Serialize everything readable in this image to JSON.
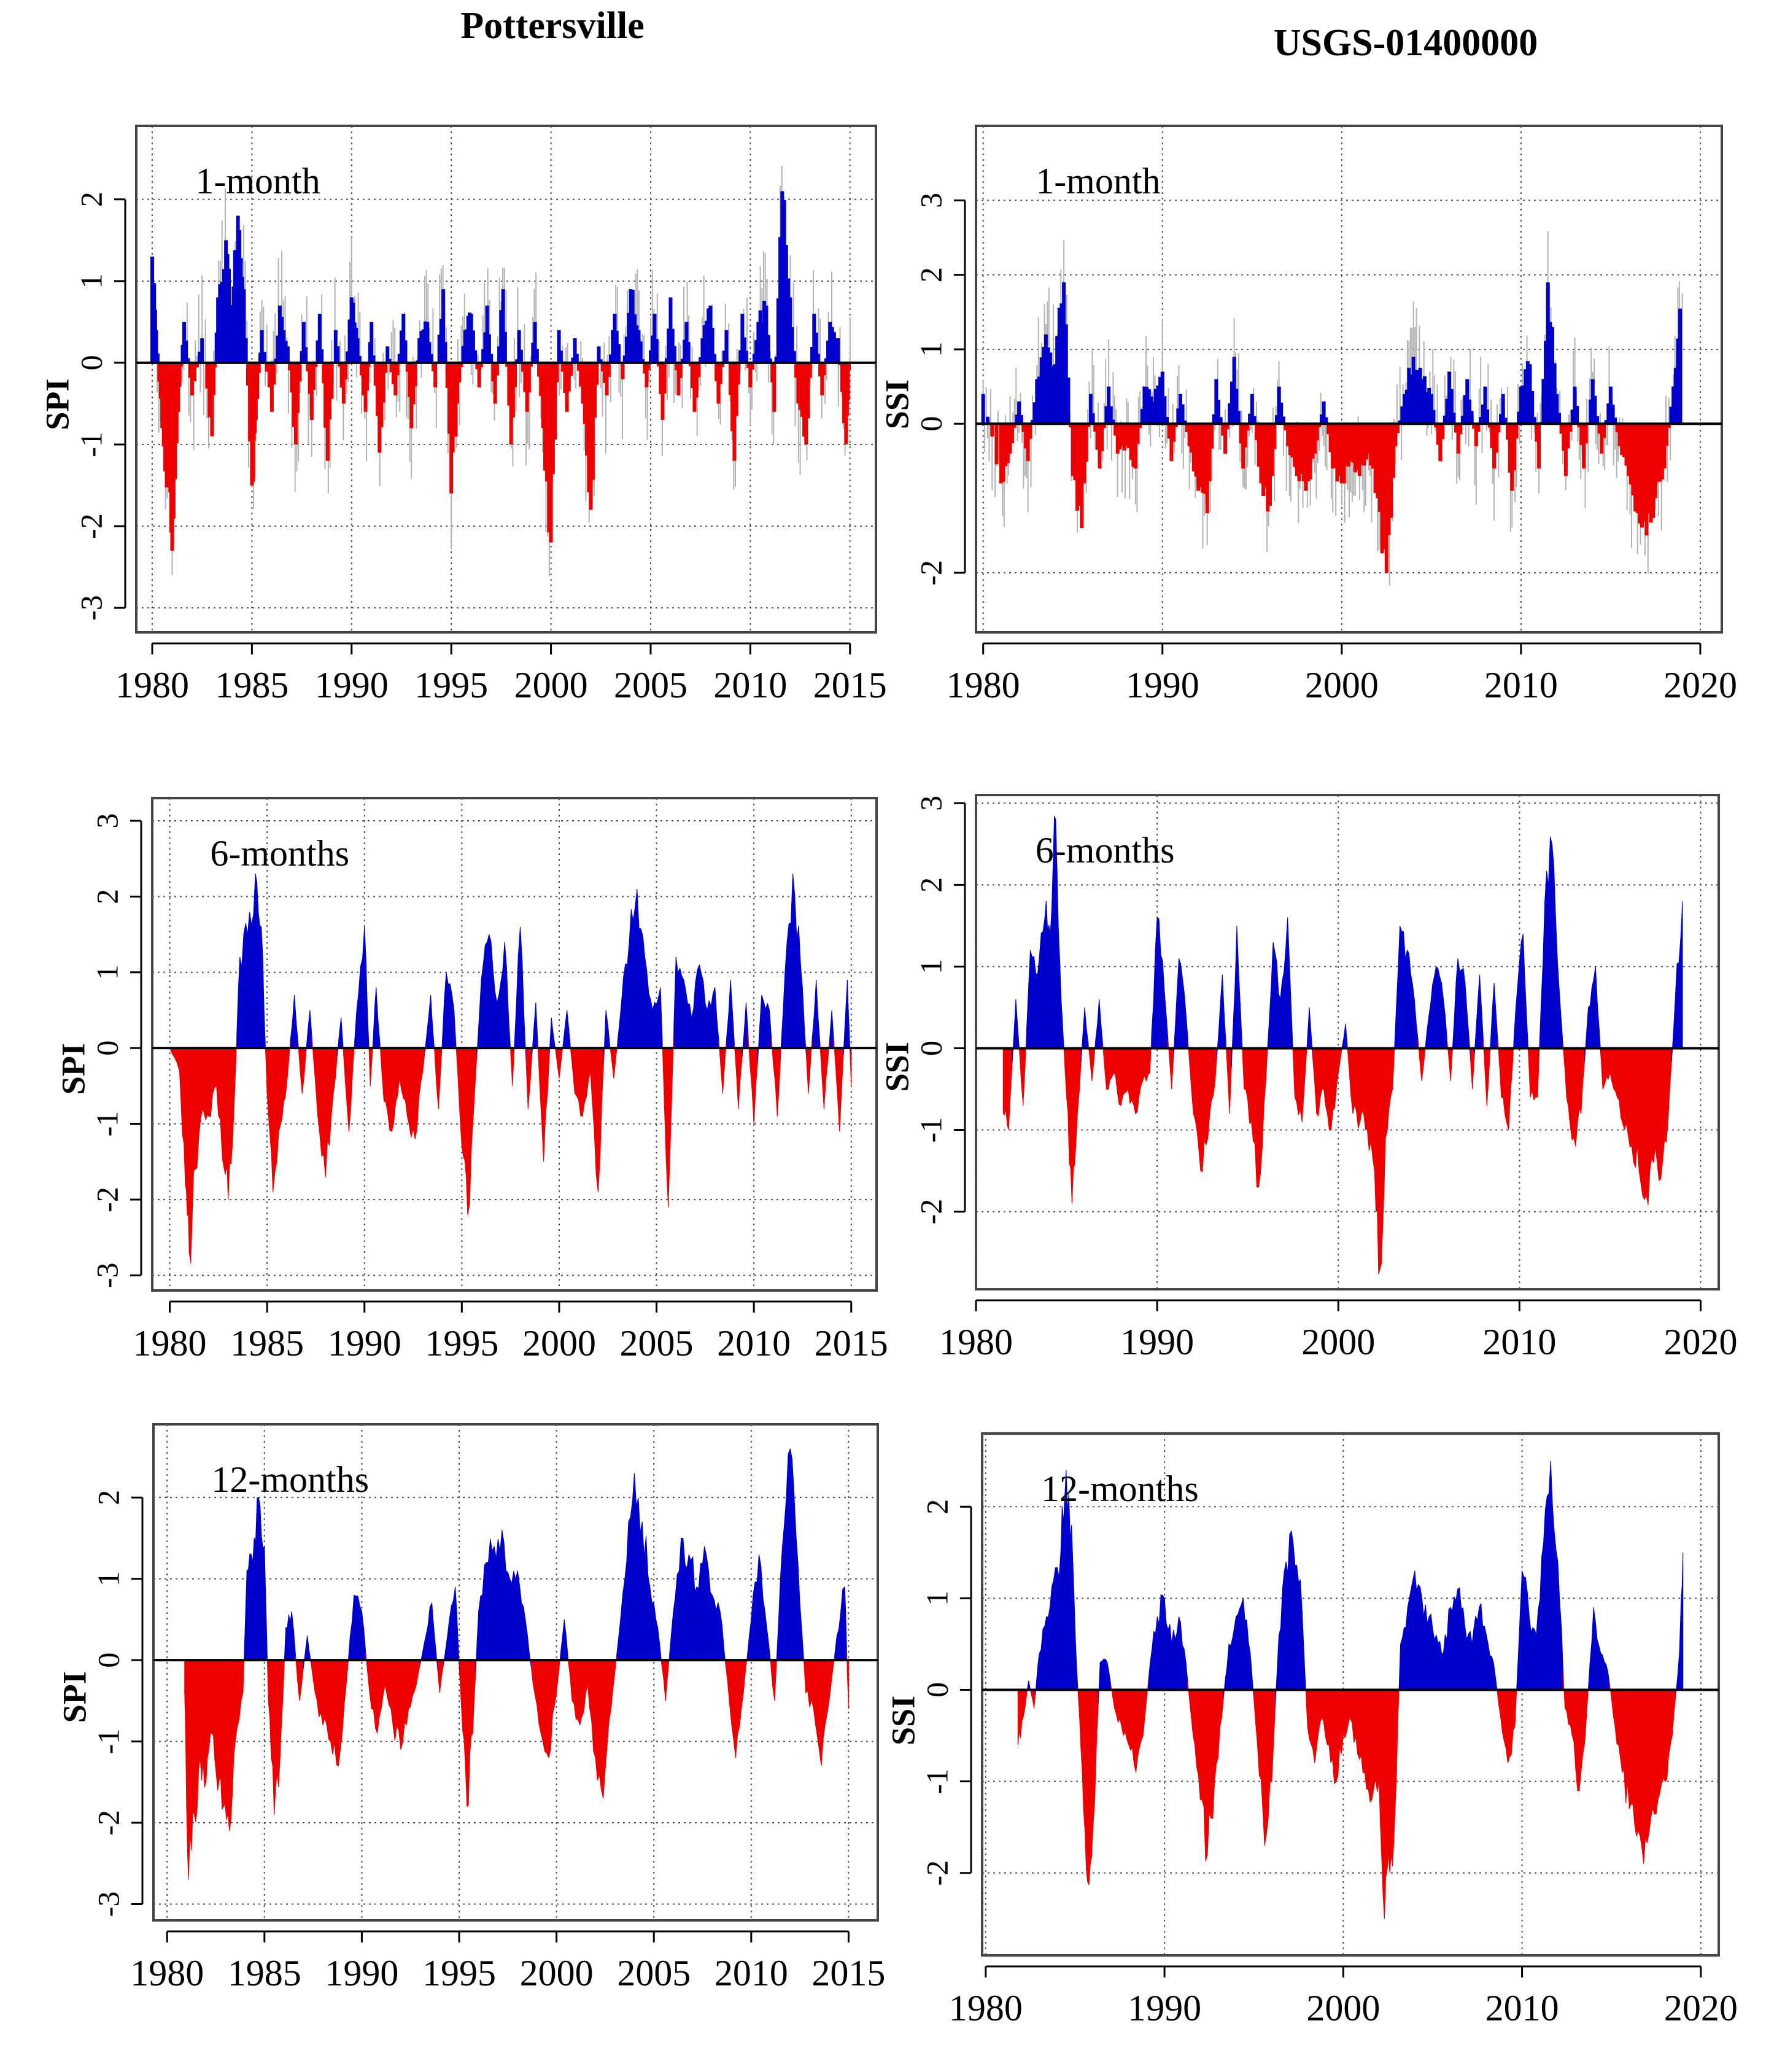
{
  "figure": {
    "left_title": "Pottersville",
    "right_title": "USGS-01400000"
  },
  "colors": {
    "positive": "#0000cc",
    "negative": "#ee0000",
    "noise": "#b3b3b3",
    "grid": "#555555",
    "frame": "#444444"
  },
  "chart_data": [
    {
      "type": "area",
      "panel": "spi-1",
      "title": "",
      "label": "1-month",
      "ylabel": "SPI",
      "xlabel": "",
      "xlim": [
        1979.2,
        2016.3
      ],
      "ylim": [
        -3.3,
        2.9
      ],
      "xticks": [
        1980,
        1985,
        1990,
        1995,
        2000,
        2005,
        2010,
        2015
      ],
      "yticks": [
        -3,
        -2,
        -1,
        0,
        1,
        2
      ],
      "grid": true,
      "monthly": true,
      "x": [
        1980.0,
        1980.2,
        1980.5,
        1980.8,
        1981.0,
        1981.3,
        1981.6,
        1982.0,
        1982.5,
        1983.0,
        1983.3,
        1983.7,
        1984.0,
        1984.3,
        1984.6,
        1985.0,
        1985.2,
        1985.5,
        1986.0,
        1986.4,
        1986.8,
        1987.2,
        1987.6,
        1988.0,
        1988.4,
        1988.8,
        1989.2,
        1989.6,
        1990.0,
        1990.3,
        1990.7,
        1991.0,
        1991.4,
        1991.8,
        1992.2,
        1992.6,
        1993.0,
        1993.4,
        1993.8,
        1994.2,
        1994.6,
        1995.0,
        1995.3,
        1995.7,
        1996.0,
        1996.4,
        1996.8,
        1997.2,
        1997.6,
        1998.0,
        1998.4,
        1998.8,
        1999.2,
        1999.6,
        2000.0,
        2000.4,
        2000.8,
        2001.2,
        2001.6,
        2002.0,
        2002.4,
        2002.8,
        2003.2,
        2003.6,
        2004.0,
        2004.4,
        2004.8,
        2005.2,
        2005.6,
        2006.0,
        2006.4,
        2006.8,
        2007.2,
        2007.6,
        2008.0,
        2008.4,
        2008.8,
        2009.2,
        2009.6,
        2010.0,
        2010.4,
        2010.8,
        2011.2,
        2011.6,
        2012.0,
        2012.4,
        2012.8,
        2013.2,
        2013.6,
        2014.0,
        2014.4,
        2014.8,
        2015.0
      ],
      "values": [
        1.3,
        0.4,
        -0.8,
        -1.5,
        -2.3,
        -0.6,
        0.5,
        -0.4,
        0.3,
        -0.9,
        0.8,
        1.5,
        0.6,
        1.8,
        0.9,
        -1.5,
        -0.7,
        0.4,
        -0.6,
        0.7,
        0.2,
        -1.0,
        0.5,
        -0.7,
        0.6,
        -1.2,
        0.4,
        -0.5,
        0.8,
        0.3,
        -0.6,
        0.5,
        -1.1,
        0.2,
        -0.4,
        0.6,
        -0.8,
        0.3,
        0.5,
        -0.3,
        0.9,
        -1.6,
        -0.5,
        0.4,
        0.6,
        -0.3,
        0.7,
        -0.5,
        0.9,
        -1.0,
        0.4,
        -0.6,
        0.5,
        -0.8,
        -2.2,
        0.4,
        -0.6,
        0.3,
        -0.5,
        -1.8,
        0.2,
        -0.4,
        0.6,
        -0.2,
        0.9,
        0.4,
        -0.3,
        0.6,
        -0.7,
        0.8,
        -0.4,
        0.5,
        -0.6,
        0.3,
        0.7,
        -0.5,
        0.4,
        -1.2,
        0.6,
        -0.3,
        0.5,
        0.7,
        -0.6,
        2.1,
        0.8,
        -0.5,
        -1.0,
        0.6,
        -0.4,
        0.5,
        0.3,
        -1.0,
        0.2
      ]
    },
    {
      "type": "area",
      "panel": "ssi-1",
      "title": "",
      "label": "1-month",
      "ylabel": "SSI",
      "xlabel": "",
      "xlim": [
        1979.6,
        2021.2
      ],
      "ylim": [
        -2.8,
        4.0
      ],
      "xticks": [
        1980,
        1990,
        2000,
        2010,
        2020
      ],
      "yticks": [
        -2,
        0,
        1,
        2,
        3
      ],
      "grid": true,
      "monthly": true,
      "x": [
        1980.0,
        1981.0,
        1981.5,
        1982.0,
        1982.5,
        1983.0,
        1983.5,
        1984.0,
        1984.5,
        1985.0,
        1985.5,
        1986.0,
        1986.5,
        1987.0,
        1987.5,
        1988.0,
        1988.5,
        1989.0,
        1989.5,
        1990.0,
        1990.5,
        1991.0,
        1991.5,
        1992.0,
        1992.5,
        1993.0,
        1993.5,
        1994.0,
        1994.5,
        1995.0,
        1995.5,
        1996.0,
        1996.5,
        1997.0,
        1997.5,
        1998.0,
        1998.5,
        1999.0,
        1999.5,
        2000.0,
        2000.5,
        2001.0,
        2001.5,
        2002.0,
        2002.5,
        2003.0,
        2003.5,
        2004.0,
        2004.5,
        2005.0,
        2005.5,
        2006.0,
        2006.5,
        2007.0,
        2007.5,
        2008.0,
        2008.5,
        2009.0,
        2009.5,
        2010.0,
        2010.5,
        2011.0,
        2011.5,
        2012.0,
        2012.5,
        2013.0,
        2013.5,
        2014.0,
        2014.5,
        2015.0,
        2015.5,
        2016.0,
        2016.5,
        2017.0,
        2017.5,
        2018.0,
        2018.5,
        2019.0
      ],
      "values": [
        0.4,
        -0.8,
        -0.4,
        0.3,
        -0.5,
        0.6,
        1.2,
        0.8,
        1.9,
        -0.7,
        -1.4,
        0.4,
        -0.6,
        0.5,
        -0.4,
        -0.3,
        -0.6,
        0.5,
        0.3,
        0.7,
        -0.5,
        0.4,
        -0.3,
        -0.9,
        -1.2,
        0.6,
        -0.4,
        0.9,
        -0.6,
        0.4,
        -0.8,
        -1.1,
        0.5,
        -0.3,
        -0.7,
        -0.9,
        -0.4,
        0.3,
        -0.6,
        -0.8,
        -0.5,
        -0.7,
        -0.4,
        -1.0,
        -2.0,
        -0.3,
        0.4,
        0.9,
        0.6,
        0.4,
        -0.5,
        0.7,
        -0.4,
        0.6,
        -0.3,
        0.5,
        -0.6,
        0.4,
        -0.9,
        0.5,
        0.8,
        -0.6,
        1.9,
        0.4,
        -0.7,
        0.5,
        -0.6,
        0.6,
        -0.4,
        0.5,
        -0.3,
        -0.7,
        -1.2,
        -1.5,
        -1.0,
        -0.6,
        0.5,
        1.8
      ]
    },
    {
      "type": "area",
      "panel": "spi-6",
      "title": "",
      "label": "6-months",
      "ylabel": "SPI",
      "xlabel": "",
      "xlim": [
        1979.1,
        2016.3
      ],
      "ylim": [
        -3.2,
        3.3
      ],
      "xticks": [
        1980,
        1985,
        1990,
        1995,
        2000,
        2005,
        2010,
        2015
      ],
      "yticks": [
        -3,
        -2,
        -1,
        0,
        1,
        2,
        3
      ],
      "grid": true,
      "monthly": false,
      "x": [
        1980.0,
        1980.5,
        1980.8,
        1981.0,
        1981.3,
        1981.7,
        1982.0,
        1982.4,
        1982.8,
        1983.0,
        1983.3,
        1983.6,
        1984.0,
        1984.4,
        1984.7,
        1985.0,
        1985.3,
        1985.7,
        1986.0,
        1986.4,
        1986.8,
        1987.2,
        1987.6,
        1988.0,
        1988.4,
        1988.8,
        1989.2,
        1989.6,
        1990.0,
        1990.3,
        1990.6,
        1991.0,
        1991.4,
        1991.8,
        1992.2,
        1992.6,
        1993.0,
        1993.4,
        1993.8,
        1994.2,
        1994.6,
        1995.0,
        1995.3,
        1995.7,
        1996.0,
        1996.4,
        1996.8,
        1997.2,
        1997.6,
        1998.0,
        1998.4,
        1998.8,
        1999.2,
        1999.6,
        2000.0,
        2000.4,
        2000.8,
        2001.2,
        2001.6,
        2002.0,
        2002.4,
        2002.8,
        2003.2,
        2003.6,
        2004.0,
        2004.4,
        2004.8,
        2005.2,
        2005.6,
        2006.0,
        2006.4,
        2006.8,
        2007.2,
        2007.6,
        2008.0,
        2008.4,
        2008.8,
        2009.2,
        2009.6,
        2010.0,
        2010.4,
        2010.8,
        2011.2,
        2011.6,
        2012.0,
        2012.4,
        2012.8,
        2013.2,
        2013.6,
        2014.0,
        2014.4,
        2014.8,
        2015.0
      ],
      "values": [
        0.0,
        -0.3,
        -1.8,
        -2.7,
        -1.6,
        -0.8,
        -0.9,
        -0.5,
        -1.6,
        -2.0,
        -0.8,
        1.2,
        1.5,
        2.3,
        1.6,
        -0.6,
        -1.9,
        -1.0,
        -0.5,
        0.7,
        -0.6,
        0.5,
        -0.9,
        -1.7,
        -0.6,
        0.4,
        -1.1,
        0.5,
        1.6,
        -0.5,
        0.8,
        -0.7,
        -1.1,
        -0.4,
        -0.9,
        -1.2,
        -0.3,
        0.7,
        -0.8,
        1.0,
        0.5,
        -1.3,
        -2.2,
        -0.4,
        0.9,
        1.5,
        0.6,
        1.4,
        -0.5,
        1.6,
        -0.8,
        0.6,
        -1.5,
        0.4,
        -0.4,
        0.5,
        -0.6,
        -0.9,
        -0.3,
        -1.9,
        0.5,
        -0.4,
        0.6,
        1.4,
        2.1,
        1.2,
        0.5,
        0.8,
        -2.1,
        1.2,
        0.9,
        0.4,
        1.1,
        0.5,
        0.8,
        -0.6,
        0.9,
        -0.8,
        0.6,
        -1.0,
        0.7,
        0.5,
        -0.9,
        1.0,
        2.3,
        1.1,
        -0.6,
        0.9,
        -0.8,
        0.5,
        -1.1,
        0.9,
        -0.5
      ]
    },
    {
      "type": "area",
      "panel": "ssi-6",
      "title": "",
      "label": "6-months",
      "ylabel": "SSI",
      "xlabel": "",
      "xlim": [
        1980.0,
        2021.0
      ],
      "ylim": [
        -2.95,
        3.1
      ],
      "xticks": [
        1980,
        1990,
        2000,
        2010,
        2020
      ],
      "yticks": [
        -2,
        -1,
        0,
        1,
        2,
        3
      ],
      "grid": true,
      "monthly": false,
      "x": [
        1981.5,
        1981.8,
        1982.2,
        1982.6,
        1983.0,
        1983.4,
        1983.8,
        1984.1,
        1984.4,
        1984.7,
        1985.0,
        1985.3,
        1985.6,
        1986.0,
        1986.4,
        1986.8,
        1987.2,
        1987.6,
        1988.0,
        1988.4,
        1988.8,
        1989.2,
        1989.6,
        1990.0,
        1990.4,
        1990.8,
        1991.2,
        1991.6,
        1992.0,
        1992.4,
        1992.8,
        1993.2,
        1993.6,
        1994.0,
        1994.4,
        1994.8,
        1995.2,
        1995.6,
        1996.0,
        1996.4,
        1996.8,
        1997.2,
        1997.6,
        1998.0,
        1998.4,
        1998.8,
        1999.2,
        1999.6,
        2000.0,
        2000.4,
        2000.8,
        2001.2,
        2001.6,
        2002.0,
        2002.3,
        2002.6,
        2003.0,
        2003.4,
        2003.8,
        2004.2,
        2004.6,
        2005.0,
        2005.4,
        2005.8,
        2006.2,
        2006.6,
        2007.0,
        2007.4,
        2007.8,
        2008.2,
        2008.6,
        2009.0,
        2009.4,
        2009.8,
        2010.2,
        2010.6,
        2011.0,
        2011.4,
        2011.8,
        2012.2,
        2012.6,
        2013.0,
        2013.4,
        2013.8,
        2014.2,
        2014.6,
        2015.0,
        2015.4,
        2015.8,
        2016.2,
        2016.6,
        2017.0,
        2017.4,
        2017.8,
        2018.2,
        2018.6,
        2019.0
      ],
      "values": [
        -0.8,
        -1.0,
        0.6,
        -0.7,
        1.2,
        0.9,
        1.6,
        1.4,
        2.8,
        0.6,
        -0.6,
        -1.9,
        -0.8,
        0.5,
        -0.4,
        0.6,
        -0.5,
        -0.3,
        -0.7,
        -0.5,
        -0.8,
        -0.4,
        -0.3,
        1.6,
        0.7,
        -0.5,
        1.1,
        0.4,
        -0.8,
        -1.5,
        -1.1,
        -0.4,
        0.9,
        -0.8,
        1.5,
        -0.5,
        -0.9,
        -1.7,
        -0.4,
        1.3,
        0.6,
        1.6,
        -0.6,
        -0.9,
        0.5,
        -0.8,
        -0.5,
        -1.0,
        -0.3,
        0.3,
        -0.8,
        -0.9,
        -1.0,
        -1.5,
        -2.7,
        -1.1,
        -0.5,
        1.5,
        1.2,
        0.6,
        -0.4,
        0.4,
        1.0,
        0.6,
        -0.4,
        1.1,
        0.8,
        -0.5,
        0.9,
        -0.7,
        0.8,
        -0.6,
        -1.0,
        0.5,
        1.4,
        -0.6,
        -0.6,
        1.8,
        2.5,
        0.7,
        -0.6,
        -1.1,
        -0.8,
        0.5,
        1.0,
        -0.5,
        -0.3,
        -0.6,
        -1.0,
        -1.2,
        -1.5,
        -1.8,
        -1.4,
        -1.6,
        -0.9,
        0.6,
        1.8
      ]
    },
    {
      "type": "area",
      "panel": "spi-12",
      "title": "",
      "label": "12-months",
      "ylabel": "SPI",
      "xlabel": "",
      "xlim": [
        1979.3,
        2016.5
      ],
      "ylim": [
        -3.2,
        2.9
      ],
      "xticks": [
        1980,
        1985,
        1990,
        1995,
        2000,
        2005,
        2010,
        2015
      ],
      "yticks": [
        -3,
        -2,
        -1,
        0,
        1,
        2
      ],
      "grid": true,
      "monthly": false,
      "x": [
        1980.9,
        1981.1,
        1981.4,
        1981.7,
        1982.0,
        1982.3,
        1982.6,
        1982.9,
        1983.2,
        1983.5,
        1983.9,
        1984.1,
        1984.4,
        1984.7,
        1985.0,
        1985.2,
        1985.5,
        1985.8,
        1986.1,
        1986.4,
        1986.8,
        1987.2,
        1987.6,
        1988.0,
        1988.4,
        1988.8,
        1989.2,
        1989.6,
        1990.0,
        1990.4,
        1990.8,
        1991.2,
        1991.6,
        1992.0,
        1992.4,
        1992.8,
        1993.2,
        1993.6,
        1994.0,
        1994.4,
        1994.8,
        1995.1,
        1995.4,
        1995.7,
        1996.0,
        1996.4,
        1996.8,
        1997.2,
        1997.6,
        1998.0,
        1998.4,
        1998.8,
        1999.2,
        1999.6,
        2000.0,
        2000.4,
        2000.8,
        2001.2,
        2001.6,
        2002.0,
        2002.4,
        2002.8,
        2003.2,
        2003.6,
        2004.0,
        2004.4,
        2004.8,
        2005.2,
        2005.6,
        2006.0,
        2006.4,
        2006.8,
        2007.2,
        2007.6,
        2008.0,
        2008.4,
        2008.8,
        2009.2,
        2009.6,
        2010.0,
        2010.4,
        2010.8,
        2011.2,
        2011.6,
        2012.0,
        2012.4,
        2012.8,
        2013.2,
        2013.6,
        2014.0,
        2014.4,
        2014.8,
        2015.0
      ],
      "values": [
        -0.4,
        -2.7,
        -1.9,
        -1.2,
        -1.5,
        -0.9,
        -1.6,
        -1.8,
        -2.1,
        -1.0,
        -0.4,
        1.1,
        1.2,
        2.0,
        1.4,
        -0.5,
        -1.9,
        -1.2,
        0.4,
        0.6,
        -0.5,
        0.3,
        -0.4,
        -0.8,
        -1.0,
        -1.3,
        -0.3,
        0.8,
        0.6,
        -0.4,
        -0.9,
        -0.3,
        -0.8,
        -1.1,
        -0.6,
        -0.3,
        0.2,
        0.7,
        -0.4,
        0.3,
        0.9,
        -0.5,
        -1.8,
        -0.9,
        0.6,
        1.2,
        1.4,
        1.6,
        1.0,
        1.1,
        0.5,
        -0.3,
        -0.9,
        -1.2,
        -0.4,
        0.5,
        -0.5,
        -0.8,
        -0.3,
        -1.2,
        -1.7,
        -0.6,
        0.3,
        1.2,
        2.3,
        1.7,
        0.9,
        0.4,
        -0.5,
        0.6,
        1.5,
        1.3,
        0.9,
        1.4,
        0.8,
        0.6,
        -0.3,
        -1.2,
        -0.4,
        0.5,
        1.3,
        0.4,
        -0.5,
        1.4,
        2.6,
        1.2,
        -0.4,
        -0.6,
        -1.3,
        -0.5,
        0.3,
        0.9,
        -0.6
      ]
    },
    {
      "type": "area",
      "panel": "ssi-12",
      "title": "",
      "label": "12-months",
      "ylabel": "SSI",
      "xlabel": "",
      "xlim": [
        1979.8,
        2021.0
      ],
      "ylim": [
        -2.9,
        2.8
      ],
      "xticks": [
        1980,
        1990,
        2000,
        2010,
        2020
      ],
      "yticks": [
        -2,
        -1,
        0,
        1,
        2
      ],
      "grid": true,
      "monthly": false,
      "x": [
        1981.8,
        1982.1,
        1982.4,
        1982.7,
        1983.0,
        1983.4,
        1983.8,
        1984.2,
        1984.5,
        1984.8,
        1985.1,
        1985.4,
        1985.7,
        1986.0,
        1986.4,
        1986.8,
        1987.2,
        1987.6,
        1988.0,
        1988.4,
        1988.8,
        1989.2,
        1989.6,
        1990.0,
        1990.4,
        1990.8,
        1991.2,
        1991.6,
        1992.0,
        1992.4,
        1992.8,
        1993.2,
        1993.6,
        1994.0,
        1994.4,
        1994.8,
        1995.2,
        1995.6,
        1996.0,
        1996.4,
        1996.8,
        1997.2,
        1997.6,
        1998.0,
        1998.4,
        1998.8,
        1999.2,
        1999.6,
        2000.0,
        2000.4,
        2000.8,
        2001.2,
        2001.6,
        2002.0,
        2002.3,
        2002.6,
        2002.9,
        2003.2,
        2003.6,
        2004.0,
        2004.4,
        2004.8,
        2005.2,
        2005.6,
        2006.0,
        2006.4,
        2006.8,
        2007.2,
        2007.6,
        2008.0,
        2008.4,
        2008.8,
        2009.2,
        2009.6,
        2010.0,
        2010.4,
        2010.8,
        2011.2,
        2011.6,
        2012.0,
        2012.4,
        2012.8,
        2013.2,
        2013.6,
        2014.0,
        2014.4,
        2014.8,
        2015.2,
        2015.6,
        2016.0,
        2016.4,
        2016.8,
        2017.2,
        2017.6,
        2018.0,
        2018.4,
        2018.8,
        2019.0
      ],
      "values": [
        -0.6,
        -0.3,
        0.1,
        -0.2,
        0.4,
        0.8,
        1.2,
        1.5,
        2.4,
        1.8,
        0.2,
        -0.9,
        -2.1,
        -1.5,
        0.3,
        0.3,
        -0.2,
        -0.4,
        -0.6,
        -0.9,
        -0.5,
        0.3,
        0.8,
        1.0,
        0.5,
        0.8,
        0.3,
        -0.5,
        -1.2,
        -1.8,
        -1.0,
        -0.3,
        0.5,
        0.8,
        1.0,
        0.4,
        -0.6,
        -1.7,
        -1.0,
        0.6,
        1.4,
        1.6,
        1.2,
        -0.4,
        -0.8,
        -0.3,
        -0.6,
        -1.0,
        -0.5,
        -0.3,
        -0.7,
        -0.9,
        -1.2,
        -1.0,
        -2.5,
        -2.0,
        -1.3,
        0.5,
        0.9,
        1.3,
        1.0,
        0.8,
        0.6,
        0.4,
        0.9,
        1.1,
        0.7,
        0.5,
        0.9,
        0.6,
        0.3,
        -0.3,
        -0.8,
        -0.4,
        1.3,
        0.8,
        0.6,
        1.6,
        2.5,
        1.4,
        -0.2,
        -0.5,
        -1.1,
        -0.3,
        0.9,
        0.4,
        0.2,
        -0.4,
        -0.9,
        -1.3,
        -1.6,
        -1.9,
        -1.4,
        -1.2,
        -1.0,
        -0.5,
        0.4,
        1.5
      ]
    }
  ]
}
